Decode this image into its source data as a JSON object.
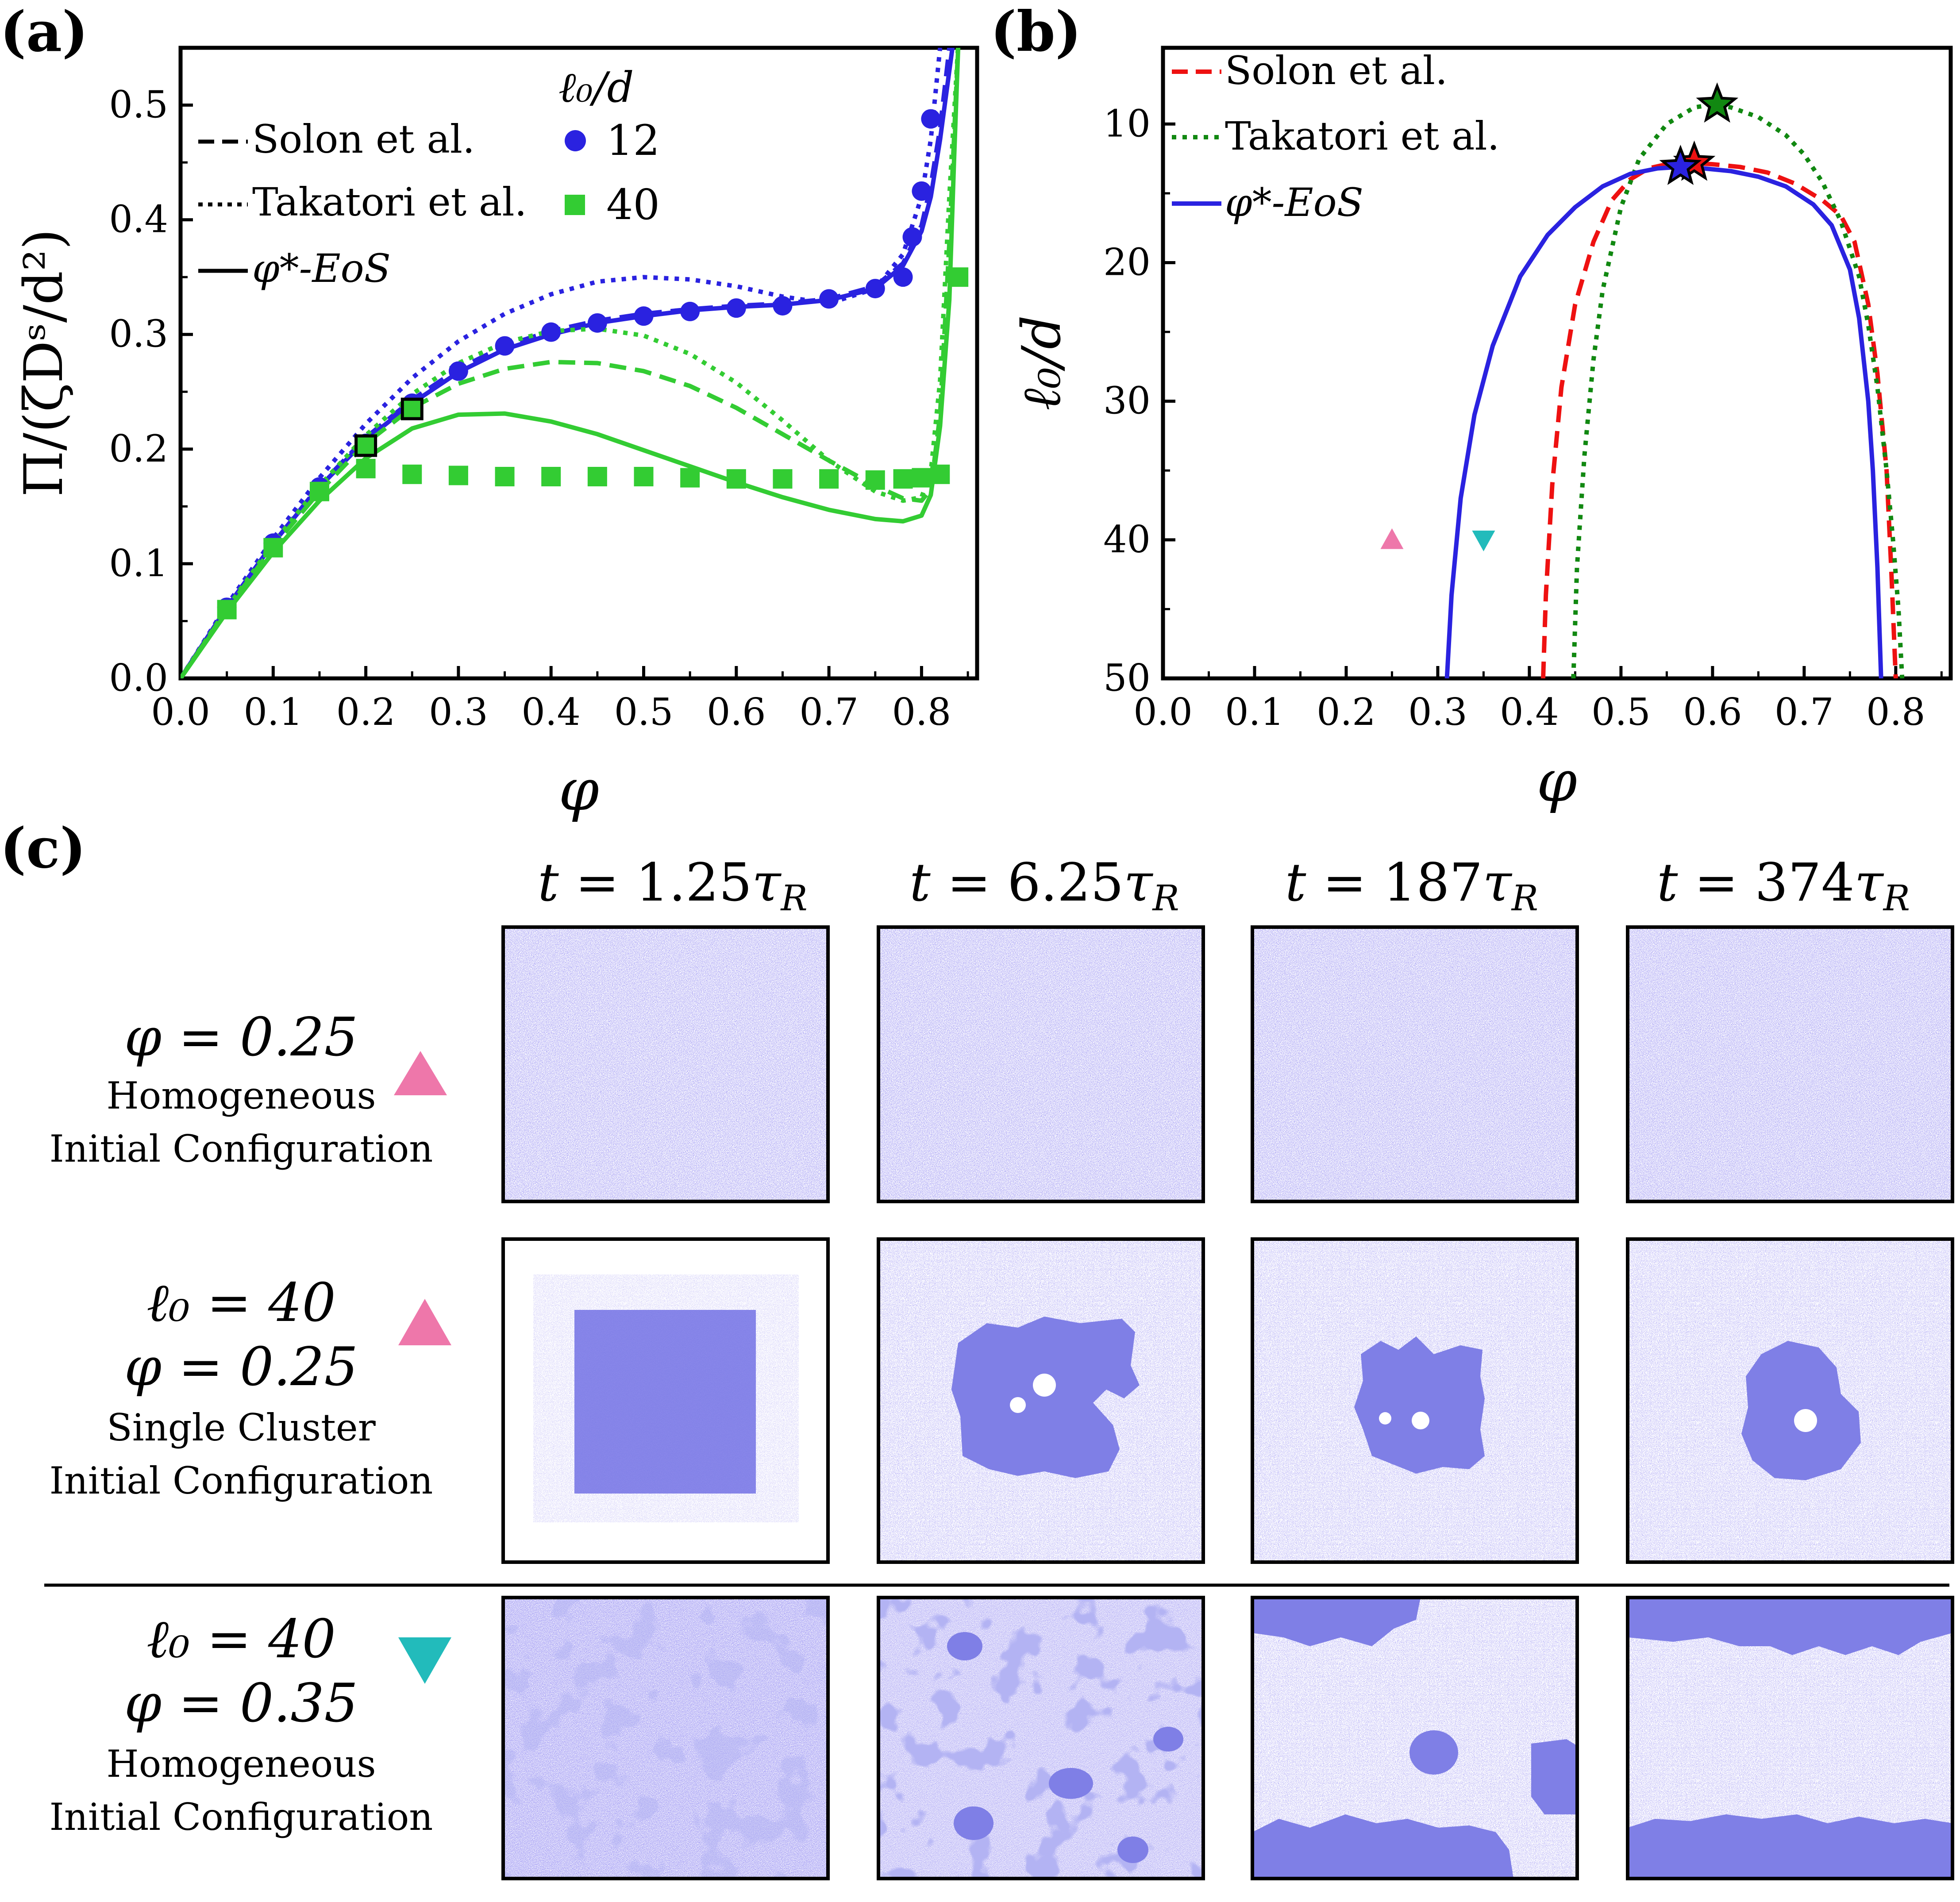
{
  "panel_labels": {
    "a": "(a)",
    "b": "(b)",
    "c": "(c)"
  },
  "chart_data": [
    {
      "id": "a",
      "type": "line",
      "xlabel": "φ",
      "ylabel": "Π/(ζDˢ/d²)",
      "xlim": [
        0.0,
        0.86
      ],
      "ylim": [
        0.0,
        0.55
      ],
      "xticks": [
        "0.0",
        "0.1",
        "0.2",
        "0.3",
        "0.4",
        "0.5",
        "0.6",
        "0.7",
        "0.8"
      ],
      "yticks": [
        "0.0",
        "0.1",
        "0.2",
        "0.3",
        "0.4",
        "0.5"
      ],
      "legend_lines": [
        {
          "label": "Solon et al.",
          "style": "dashed"
        },
        {
          "label": "Takatori et al.",
          "style": "dotted"
        },
        {
          "label": "φ*-EoS",
          "style": "solid"
        }
      ],
      "legend_markers_title": "ℓ₀/d",
      "legend_markers": [
        {
          "label": "12",
          "marker": "circle",
          "color": "#2a22e0"
        },
        {
          "label": "40",
          "marker": "square",
          "color": "#33cc33"
        }
      ],
      "series": [
        {
          "name": "phi*-EoS l0/d=12",
          "style": "solid",
          "color": "#2a22e0",
          "x": [
            0,
            0.05,
            0.1,
            0.15,
            0.2,
            0.25,
            0.3,
            0.35,
            0.4,
            0.45,
            0.5,
            0.55,
            0.6,
            0.65,
            0.7,
            0.75,
            0.78,
            0.8,
            0.81,
            0.82,
            0.83,
            0.835
          ],
          "y": [
            0,
            0.062,
            0.118,
            0.167,
            0.208,
            0.24,
            0.267,
            0.287,
            0.3,
            0.31,
            0.316,
            0.321,
            0.324,
            0.326,
            0.33,
            0.34,
            0.36,
            0.39,
            0.42,
            0.47,
            0.53,
            0.56
          ]
        },
        {
          "name": "Solon l0/d=12",
          "style": "dashed",
          "color": "#2a22e0",
          "x": [
            0,
            0.05,
            0.1,
            0.15,
            0.2,
            0.25,
            0.3,
            0.35,
            0.4,
            0.45,
            0.5,
            0.55,
            0.6,
            0.65,
            0.7,
            0.75,
            0.78,
            0.8,
            0.81,
            0.82,
            0.83
          ],
          "y": [
            0,
            0.062,
            0.118,
            0.168,
            0.21,
            0.243,
            0.27,
            0.29,
            0.303,
            0.312,
            0.318,
            0.322,
            0.325,
            0.327,
            0.331,
            0.342,
            0.362,
            0.395,
            0.43,
            0.48,
            0.55
          ]
        },
        {
          "name": "Takatori l0/d=12",
          "style": "dotted",
          "color": "#2a22e0",
          "x": [
            0,
            0.05,
            0.1,
            0.15,
            0.2,
            0.25,
            0.3,
            0.35,
            0.4,
            0.45,
            0.5,
            0.55,
            0.6,
            0.65,
            0.7,
            0.75,
            0.78,
            0.8,
            0.81,
            0.82
          ],
          "y": [
            0,
            0.064,
            0.122,
            0.175,
            0.222,
            0.262,
            0.294,
            0.318,
            0.335,
            0.346,
            0.35,
            0.348,
            0.342,
            0.333,
            0.327,
            0.34,
            0.37,
            0.42,
            0.47,
            0.55
          ]
        },
        {
          "name": "phi*-EoS l0/d=40",
          "style": "solid",
          "color": "#33cc33",
          "x": [
            0,
            0.05,
            0.1,
            0.15,
            0.2,
            0.25,
            0.3,
            0.35,
            0.4,
            0.45,
            0.5,
            0.55,
            0.6,
            0.65,
            0.7,
            0.75,
            0.78,
            0.8,
            0.81,
            0.82,
            0.83,
            0.835,
            0.84
          ],
          "y": [
            0,
            0.058,
            0.11,
            0.155,
            0.192,
            0.218,
            0.23,
            0.231,
            0.224,
            0.213,
            0.199,
            0.185,
            0.171,
            0.158,
            0.147,
            0.139,
            0.137,
            0.142,
            0.16,
            0.22,
            0.33,
            0.45,
            0.56
          ]
        },
        {
          "name": "Solon l0/d=40",
          "style": "dashed",
          "color": "#33cc33",
          "x": [
            0,
            0.05,
            0.1,
            0.15,
            0.2,
            0.25,
            0.3,
            0.35,
            0.4,
            0.45,
            0.5,
            0.55,
            0.6,
            0.65,
            0.7,
            0.75,
            0.78,
            0.8,
            0.81,
            0.82,
            0.83,
            0.84
          ],
          "y": [
            0,
            0.06,
            0.115,
            0.163,
            0.205,
            0.236,
            0.257,
            0.27,
            0.276,
            0.275,
            0.268,
            0.255,
            0.236,
            0.213,
            0.19,
            0.168,
            0.157,
            0.155,
            0.165,
            0.23,
            0.38,
            0.56
          ]
        },
        {
          "name": "Takatori l0/d=40",
          "style": "dotted",
          "color": "#33cc33",
          "x": [
            0,
            0.05,
            0.1,
            0.15,
            0.2,
            0.25,
            0.3,
            0.35,
            0.4,
            0.45,
            0.5,
            0.55,
            0.6,
            0.65,
            0.7,
            0.75,
            0.78,
            0.8,
            0.81,
            0.82,
            0.83,
            0.84
          ],
          "y": [
            0,
            0.061,
            0.118,
            0.168,
            0.212,
            0.248,
            0.275,
            0.293,
            0.303,
            0.305,
            0.299,
            0.283,
            0.258,
            0.225,
            0.19,
            0.163,
            0.155,
            0.158,
            0.18,
            0.26,
            0.42,
            0.56
          ]
        }
      ],
      "markers": [
        {
          "name": "l0/d=12",
          "marker": "circle",
          "color": "#2a22e0",
          "x": [
            0.05,
            0.1,
            0.15,
            0.2,
            0.25,
            0.3,
            0.35,
            0.4,
            0.45,
            0.5,
            0.55,
            0.6,
            0.65,
            0.7,
            0.75,
            0.78,
            0.79,
            0.8,
            0.81
          ],
          "y": [
            0.062,
            0.118,
            0.167,
            0.205,
            0.24,
            0.268,
            0.29,
            0.302,
            0.31,
            0.316,
            0.32,
            0.323,
            0.325,
            0.331,
            0.34,
            0.35,
            0.385,
            0.425,
            0.488
          ]
        },
        {
          "name": "l0/d=40",
          "marker": "square",
          "color": "#33cc33",
          "x": [
            0.05,
            0.1,
            0.15,
            0.2,
            0.25,
            0.3,
            0.35,
            0.4,
            0.45,
            0.5,
            0.55,
            0.6,
            0.65,
            0.7,
            0.75,
            0.78,
            0.8,
            0.82,
            0.84
          ],
          "y": [
            0.06,
            0.114,
            0.163,
            0.183,
            0.178,
            0.177,
            0.176,
            0.176,
            0.176,
            0.176,
            0.175,
            0.174,
            0.174,
            0.174,
            0.173,
            0.174,
            0.175,
            0.178,
            0.35
          ]
        }
      ],
      "open_squares": [
        {
          "x": 0.2,
          "y": 0.203
        },
        {
          "x": 0.25,
          "y": 0.235
        }
      ]
    },
    {
      "id": "b",
      "type": "line",
      "xlabel": "φ",
      "ylabel": "ℓ₀/d",
      "xlim": [
        0.0,
        0.86
      ],
      "ylim": [
        50,
        4.5
      ],
      "y_inverted": true,
      "xticks": [
        "0.0",
        "0.1",
        "0.2",
        "0.3",
        "0.4",
        "0.5",
        "0.6",
        "0.7",
        "0.8"
      ],
      "yticks": [
        "10",
        "20",
        "30",
        "40",
        "50"
      ],
      "legend": [
        {
          "label": "Solon et al.",
          "style": "dashed",
          "color": "#ee1111"
        },
        {
          "label": "Takatori et al.",
          "style": "dotted",
          "color": "#118811"
        },
        {
          "label": "φ*-EoS",
          "style": "solid",
          "color": "#2a22e0"
        }
      ],
      "series": [
        {
          "name": "Solon et al.",
          "style": "dashed",
          "color": "#ee1111",
          "x": [
            0.415,
            0.418,
            0.425,
            0.435,
            0.45,
            0.47,
            0.49,
            0.51,
            0.53,
            0.55,
            0.575,
            0.6,
            0.63,
            0.66,
            0.69,
            0.72,
            0.74,
            0.755,
            0.77,
            0.78,
            0.79,
            0.795,
            0.8
          ],
          "y": [
            50,
            44,
            36,
            29,
            23,
            18.5,
            15.5,
            14,
            13.2,
            12.9,
            12.8,
            12.9,
            13.1,
            13.5,
            14.3,
            15.5,
            16.6,
            18.5,
            23,
            28,
            35,
            42,
            50
          ]
        },
        {
          "name": "Takatori et al.",
          "style": "dotted",
          "color": "#118811",
          "x": [
            0.448,
            0.452,
            0.46,
            0.47,
            0.48,
            0.5,
            0.52,
            0.55,
            0.58,
            0.6,
            0.62,
            0.65,
            0.68,
            0.7,
            0.72,
            0.74,
            0.76,
            0.77,
            0.78,
            0.79,
            0.797,
            0.803,
            0.807
          ],
          "y": [
            50,
            42,
            34,
            27,
            22,
            16,
            12.5,
            10,
            8.8,
            8.6,
            8.8,
            9.5,
            10.8,
            12.2,
            14.2,
            17,
            21,
            24.5,
            29,
            35,
            40,
            45,
            50
          ]
        },
        {
          "name": "phi*-EoS",
          "style": "solid",
          "color": "#2a22e0",
          "x": [
            0.31,
            0.315,
            0.325,
            0.34,
            0.36,
            0.39,
            0.42,
            0.45,
            0.48,
            0.51,
            0.54,
            0.565,
            0.59,
            0.62,
            0.65,
            0.68,
            0.71,
            0.73,
            0.75,
            0.76,
            0.77,
            0.775,
            0.78,
            0.784
          ],
          "y": [
            50,
            44,
            37,
            31,
            26,
            21,
            18,
            16,
            14.5,
            13.6,
            13.2,
            13.1,
            13.2,
            13.4,
            13.8,
            14.5,
            15.8,
            17.3,
            20.5,
            24,
            30,
            35,
            42,
            50
          ]
        }
      ],
      "critical_points": [
        {
          "x": 0.58,
          "y": 12.8,
          "color": "#ee1111"
        },
        {
          "x": 0.605,
          "y": 8.6,
          "color": "#118811"
        },
        {
          "x": 0.565,
          "y": 13.1,
          "color": "#2a22e0"
        }
      ],
      "state_points": [
        {
          "x": 0.25,
          "y": 40,
          "marker": "triangle-up",
          "color": "#ee77aa"
        },
        {
          "x": 0.35,
          "y": 40,
          "marker": "triangle-down",
          "color": "#22bbbb"
        }
      ]
    }
  ],
  "panel_c": {
    "time_labels": [
      "t = 1.25τ_R",
      "t = 6.25τ_R",
      "t = 187τ_R",
      "t = 374τ_R"
    ],
    "time_values": [
      "1.25",
      "6.25",
      "187",
      "374"
    ],
    "rows": [
      {
        "math": [
          "φ = 0.25"
        ],
        "desc": [
          "Homogeneous",
          "Initial Configuration"
        ],
        "marker": "triangle-up",
        "marker_color": "#ee77aa"
      },
      {
        "math": [
          "ℓ₀ = 40",
          "φ = 0.25"
        ],
        "desc": [
          "Single Cluster",
          "Initial Configuration"
        ],
        "marker": "triangle-up",
        "marker_color": "#ee77aa"
      },
      {
        "math": [
          "ℓ₀ = 40",
          "φ = 0.35"
        ],
        "desc": [
          "Homogeneous",
          "Initial Configuration"
        ],
        "marker": "triangle-down",
        "marker_color": "#22bbbb"
      }
    ],
    "particle_color": "#5a55e6",
    "cluster_color": "#7f7fe6"
  }
}
